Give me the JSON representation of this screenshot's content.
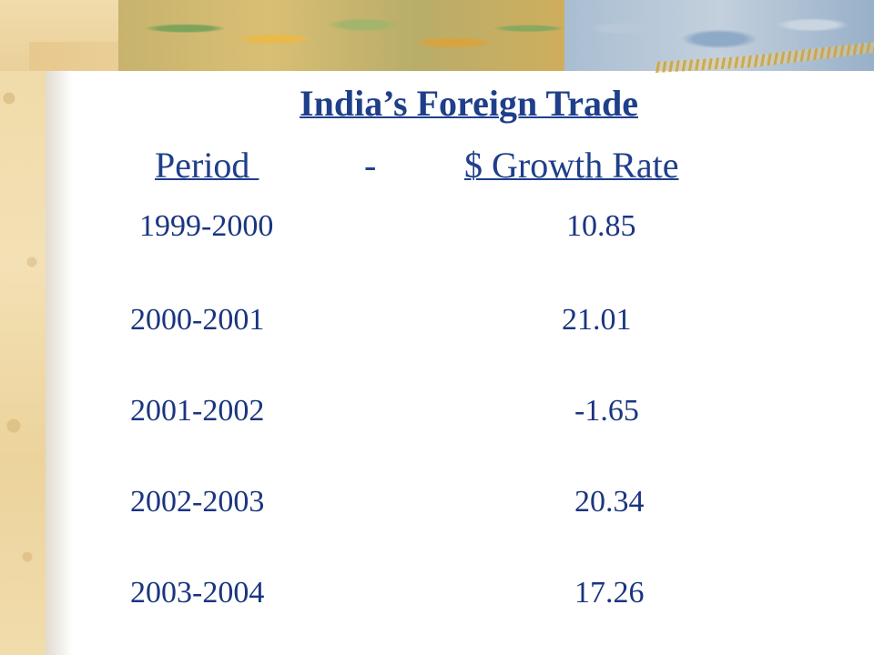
{
  "slide": {
    "title": "India’s Foreign Trade",
    "header": {
      "period_label": "Period ",
      "separator": "-",
      "growth_label": "$ Growth Rate"
    },
    "rows": [
      {
        "period": "1999-2000",
        "rate": "10.85"
      },
      {
        "period": "2000-2001",
        "rate": "21.01"
      },
      {
        "period": "2001-2002",
        "rate": "-1.65"
      },
      {
        "period": "2002-2003",
        "rate": "20.34"
      },
      {
        "period": "2003-2004",
        "rate": "17.26"
      }
    ]
  },
  "theme": {
    "text_color": "#1f3f8a",
    "accent_parchment": "#efd9a6"
  }
}
